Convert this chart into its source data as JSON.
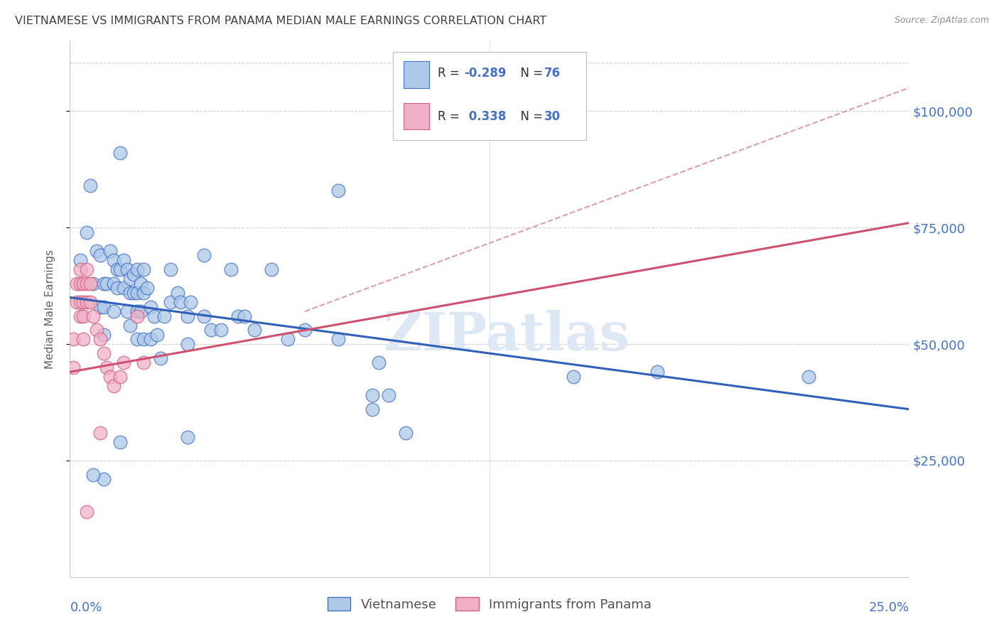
{
  "title": "VIETNAMESE VS IMMIGRANTS FROM PANAMA MEDIAN MALE EARNINGS CORRELATION CHART",
  "source": "Source: ZipAtlas.com",
  "ylabel": "Median Male Earnings",
  "yticks": [
    25000,
    50000,
    75000,
    100000
  ],
  "ytick_labels": [
    "$25,000",
    "$50,000",
    "$75,000",
    "$100,000"
  ],
  "xlim": [
    0.0,
    0.25
  ],
  "ylim": [
    0,
    115000
  ],
  "watermark": "ZIPatlas",
  "blue_fill": "#adc8e8",
  "blue_edge": "#4472c4",
  "pink_fill": "#f0b0c8",
  "pink_edge": "#d06080",
  "blue_line_color": "#3060b8",
  "pink_line_color": "#d05070",
  "pink_dash_color": "#d08090",
  "grid_color": "#d0d0d0",
  "title_color": "#404040",
  "axis_tick_color": "#4472c4",
  "legend_R_color": "#000000",
  "legend_val_color": "#4472c4",
  "legend_N_val_color": "#4472c4",
  "blue_line": {
    "x0": 0.0,
    "y0": 60000,
    "x1": 0.25,
    "y1": 36000
  },
  "pink_line": {
    "x0": 0.0,
    "y0": 44000,
    "x1": 0.25,
    "y1": 76000
  },
  "pink_dash_line": {
    "x0": 0.07,
    "y0": 57000,
    "x1": 0.25,
    "y1": 105000
  },
  "blue_points": [
    [
      0.003,
      68000
    ],
    [
      0.005,
      74000
    ],
    [
      0.006,
      84000
    ],
    [
      0.007,
      63000
    ],
    [
      0.008,
      70000
    ],
    [
      0.009,
      58000
    ],
    [
      0.009,
      69000
    ],
    [
      0.01,
      63000
    ],
    [
      0.01,
      58000
    ],
    [
      0.01,
      52000
    ],
    [
      0.011,
      63000
    ],
    [
      0.012,
      70000
    ],
    [
      0.013,
      68000
    ],
    [
      0.013,
      63000
    ],
    [
      0.013,
      57000
    ],
    [
      0.014,
      66000
    ],
    [
      0.014,
      62000
    ],
    [
      0.015,
      91000
    ],
    [
      0.015,
      66000
    ],
    [
      0.016,
      68000
    ],
    [
      0.016,
      62000
    ],
    [
      0.017,
      66000
    ],
    [
      0.017,
      57000
    ],
    [
      0.018,
      64000
    ],
    [
      0.018,
      61000
    ],
    [
      0.018,
      54000
    ],
    [
      0.019,
      65000
    ],
    [
      0.019,
      61000
    ],
    [
      0.02,
      66000
    ],
    [
      0.02,
      61000
    ],
    [
      0.02,
      57000
    ],
    [
      0.02,
      51000
    ],
    [
      0.021,
      63000
    ],
    [
      0.021,
      57000
    ],
    [
      0.022,
      66000
    ],
    [
      0.022,
      61000
    ],
    [
      0.022,
      51000
    ],
    [
      0.023,
      62000
    ],
    [
      0.024,
      58000
    ],
    [
      0.024,
      51000
    ],
    [
      0.025,
      56000
    ],
    [
      0.026,
      52000
    ],
    [
      0.027,
      47000
    ],
    [
      0.028,
      56000
    ],
    [
      0.03,
      66000
    ],
    [
      0.03,
      59000
    ],
    [
      0.032,
      61000
    ],
    [
      0.033,
      59000
    ],
    [
      0.035,
      56000
    ],
    [
      0.035,
      50000
    ],
    [
      0.036,
      59000
    ],
    [
      0.04,
      69000
    ],
    [
      0.04,
      56000
    ],
    [
      0.042,
      53000
    ],
    [
      0.045,
      53000
    ],
    [
      0.048,
      66000
    ],
    [
      0.05,
      56000
    ],
    [
      0.052,
      56000
    ],
    [
      0.055,
      53000
    ],
    [
      0.06,
      66000
    ],
    [
      0.065,
      51000
    ],
    [
      0.07,
      53000
    ],
    [
      0.08,
      83000
    ],
    [
      0.08,
      51000
    ],
    [
      0.09,
      36000
    ],
    [
      0.09,
      39000
    ],
    [
      0.092,
      46000
    ],
    [
      0.095,
      39000
    ],
    [
      0.1,
      31000
    ],
    [
      0.01,
      21000
    ],
    [
      0.15,
      43000
    ],
    [
      0.175,
      44000
    ],
    [
      0.22,
      43000
    ],
    [
      0.007,
      22000
    ],
    [
      0.015,
      29000
    ],
    [
      0.035,
      30000
    ]
  ],
  "pink_points": [
    [
      0.001,
      51000
    ],
    [
      0.001,
      45000
    ],
    [
      0.002,
      63000
    ],
    [
      0.002,
      59000
    ],
    [
      0.003,
      66000
    ],
    [
      0.003,
      63000
    ],
    [
      0.003,
      59000
    ],
    [
      0.003,
      56000
    ],
    [
      0.004,
      63000
    ],
    [
      0.004,
      59000
    ],
    [
      0.004,
      56000
    ],
    [
      0.005,
      66000
    ],
    [
      0.005,
      63000
    ],
    [
      0.005,
      59000
    ],
    [
      0.006,
      63000
    ],
    [
      0.006,
      59000
    ],
    [
      0.007,
      56000
    ],
    [
      0.008,
      53000
    ],
    [
      0.009,
      51000
    ],
    [
      0.01,
      48000
    ],
    [
      0.011,
      45000
    ],
    [
      0.012,
      43000
    ],
    [
      0.013,
      41000
    ],
    [
      0.015,
      43000
    ],
    [
      0.016,
      46000
    ],
    [
      0.02,
      56000
    ],
    [
      0.022,
      46000
    ],
    [
      0.004,
      51000
    ],
    [
      0.009,
      31000
    ],
    [
      0.005,
      14000
    ]
  ]
}
